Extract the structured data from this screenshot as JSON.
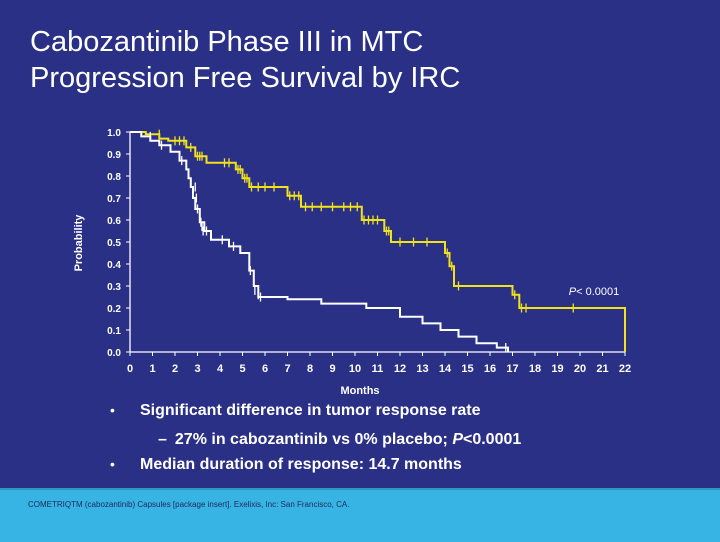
{
  "slide": {
    "title_line1": "Cabozantinib Phase III in MTC",
    "title_line2": "Progression Free Survival by IRC",
    "bullets": [
      "Significant difference in tumor response rate",
      "Median duration of response: 14.7 months"
    ],
    "sub_bullet_prefix": "27% in cabozantinib vs 0% placebo; ",
    "sub_bullet_p": "P",
    "sub_bullet_suffix": "<0.0001",
    "footer": "COMETRIQTM (cabozantinib) Capsules [package insert]. Exelixis, Inc: San Francisco, CA."
  },
  "chart_data": {
    "type": "line",
    "title": "",
    "xlabel": "Months",
    "ylabel": "Probability",
    "xlim": [
      0,
      22
    ],
    "ylim": [
      0,
      1.0
    ],
    "xticks": [
      "0",
      "1",
      "2",
      "3",
      "4",
      "5",
      "6",
      "7",
      "8",
      "9",
      "10",
      "11",
      "12",
      "13",
      "14",
      "15",
      "16",
      "17",
      "18",
      "19",
      "20",
      "21",
      "22"
    ],
    "yticks": [
      "0.0",
      "0.1",
      "0.2",
      "0.3",
      "0.4",
      "0.5",
      "0.6",
      "0.7",
      "0.8",
      "0.9",
      "1.0"
    ],
    "grid": false,
    "annotation": {
      "text_italic": "P",
      "text_rest": "< 0.0001",
      "x": 19.5,
      "y": 0.26
    },
    "colors": {
      "cabozantinib": "#f2e21c",
      "placebo": "#ffffff",
      "axis": "#ffffff"
    },
    "series": [
      {
        "step": [
          [
            0,
            1.0
          ],
          [
            0.7,
            1.0
          ],
          [
            0.7,
            0.99
          ],
          [
            1.3,
            0.99
          ],
          [
            1.3,
            0.97
          ],
          [
            1.7,
            0.97
          ],
          [
            1.7,
            0.96
          ],
          [
            2.5,
            0.96
          ],
          [
            2.5,
            0.93
          ],
          [
            2.9,
            0.93
          ],
          [
            2.9,
            0.89
          ],
          [
            3.4,
            0.89
          ],
          [
            3.4,
            0.86
          ],
          [
            4.7,
            0.86
          ],
          [
            4.7,
            0.83
          ],
          [
            5.0,
            0.83
          ],
          [
            5.0,
            0.79
          ],
          [
            5.3,
            0.79
          ],
          [
            5.3,
            0.75
          ],
          [
            7.0,
            0.75
          ],
          [
            7.0,
            0.71
          ],
          [
            7.6,
            0.71
          ],
          [
            7.6,
            0.66
          ],
          [
            10.3,
            0.66
          ],
          [
            10.3,
            0.6
          ],
          [
            11.3,
            0.6
          ],
          [
            11.3,
            0.55
          ],
          [
            11.6,
            0.55
          ],
          [
            11.6,
            0.5
          ],
          [
            14.0,
            0.5
          ],
          [
            14.0,
            0.45
          ],
          [
            14.2,
            0.45
          ],
          [
            14.2,
            0.39
          ],
          [
            14.4,
            0.39
          ],
          [
            14.4,
            0.3
          ],
          [
            17.0,
            0.3
          ],
          [
            17.0,
            0.26
          ],
          [
            17.3,
            0.26
          ],
          [
            17.3,
            0.2
          ],
          [
            22.0,
            0.2
          ],
          [
            22.0,
            0.0
          ]
        ],
        "censors": [
          [
            1.3,
            0.99
          ],
          [
            2.0,
            0.96
          ],
          [
            2.2,
            0.96
          ],
          [
            2.4,
            0.96
          ],
          [
            2.7,
            0.93
          ],
          [
            3.0,
            0.89
          ],
          [
            3.1,
            0.89
          ],
          [
            3.2,
            0.89
          ],
          [
            4.2,
            0.86
          ],
          [
            4.4,
            0.86
          ],
          [
            4.8,
            0.83
          ],
          [
            4.9,
            0.83
          ],
          [
            5.1,
            0.79
          ],
          [
            5.2,
            0.79
          ],
          [
            5.4,
            0.75
          ],
          [
            5.7,
            0.75
          ],
          [
            6.0,
            0.75
          ],
          [
            6.4,
            0.75
          ],
          [
            7.1,
            0.71
          ],
          [
            7.3,
            0.71
          ],
          [
            7.5,
            0.71
          ],
          [
            7.8,
            0.66
          ],
          [
            8.1,
            0.66
          ],
          [
            8.5,
            0.66
          ],
          [
            9.0,
            0.66
          ],
          [
            9.5,
            0.66
          ],
          [
            9.8,
            0.66
          ],
          [
            10.1,
            0.66
          ],
          [
            10.4,
            0.6
          ],
          [
            10.6,
            0.6
          ],
          [
            10.8,
            0.6
          ],
          [
            11.0,
            0.6
          ],
          [
            11.4,
            0.55
          ],
          [
            11.5,
            0.55
          ],
          [
            12.0,
            0.5
          ],
          [
            12.6,
            0.5
          ],
          [
            13.2,
            0.5
          ],
          [
            14.1,
            0.45
          ],
          [
            14.3,
            0.39
          ],
          [
            14.6,
            0.3
          ],
          [
            17.1,
            0.26
          ],
          [
            17.4,
            0.2
          ],
          [
            17.6,
            0.2
          ],
          [
            19.7,
            0.2
          ]
        ]
      },
      {
        "step": [
          [
            0,
            1.0
          ],
          [
            0.5,
            1.0
          ],
          [
            0.5,
            0.98
          ],
          [
            0.9,
            0.98
          ],
          [
            0.9,
            0.96
          ],
          [
            1.3,
            0.96
          ],
          [
            1.3,
            0.94
          ],
          [
            1.8,
            0.94
          ],
          [
            1.8,
            0.91
          ],
          [
            2.2,
            0.91
          ],
          [
            2.2,
            0.87
          ],
          [
            2.5,
            0.87
          ],
          [
            2.5,
            0.83
          ],
          [
            2.6,
            0.83
          ],
          [
            2.6,
            0.79
          ],
          [
            2.7,
            0.79
          ],
          [
            2.7,
            0.75
          ],
          [
            2.8,
            0.75
          ],
          [
            2.8,
            0.7
          ],
          [
            2.9,
            0.7
          ],
          [
            2.9,
            0.65
          ],
          [
            3.1,
            0.65
          ],
          [
            3.1,
            0.59
          ],
          [
            3.3,
            0.59
          ],
          [
            3.3,
            0.55
          ],
          [
            3.6,
            0.55
          ],
          [
            3.6,
            0.51
          ],
          [
            4.4,
            0.51
          ],
          [
            4.4,
            0.48
          ],
          [
            4.9,
            0.48
          ],
          [
            4.9,
            0.45
          ],
          [
            5.3,
            0.45
          ],
          [
            5.3,
            0.37
          ],
          [
            5.5,
            0.37
          ],
          [
            5.5,
            0.3
          ],
          [
            5.7,
            0.3
          ],
          [
            5.7,
            0.25
          ],
          [
            7.0,
            0.25
          ],
          [
            7.0,
            0.24
          ],
          [
            8.5,
            0.24
          ],
          [
            8.5,
            0.22
          ],
          [
            10.5,
            0.22
          ],
          [
            10.5,
            0.2
          ],
          [
            12.0,
            0.2
          ],
          [
            12.0,
            0.16
          ],
          [
            13.0,
            0.16
          ],
          [
            13.0,
            0.13
          ],
          [
            13.8,
            0.13
          ],
          [
            13.8,
            0.1
          ],
          [
            14.6,
            0.1
          ],
          [
            14.6,
            0.07
          ],
          [
            15.4,
            0.07
          ],
          [
            15.4,
            0.04
          ],
          [
            16.3,
            0.04
          ],
          [
            16.3,
            0.02
          ],
          [
            16.8,
            0.02
          ],
          [
            16.8,
            0.0
          ]
        ],
        "censors": [
          [
            0.9,
            0.98
          ],
          [
            1.4,
            0.94
          ],
          [
            2.3,
            0.87
          ],
          [
            2.9,
            0.75
          ],
          [
            2.95,
            0.7
          ],
          [
            3.0,
            0.65
          ],
          [
            3.15,
            0.59
          ],
          [
            3.2,
            0.57
          ],
          [
            3.25,
            0.55
          ],
          [
            3.4,
            0.55
          ],
          [
            4.1,
            0.51
          ],
          [
            4.6,
            0.48
          ],
          [
            5.35,
            0.37
          ],
          [
            5.55,
            0.28
          ],
          [
            5.7,
            0.26
          ],
          [
            5.8,
            0.25
          ],
          [
            16.7,
            0.02
          ]
        ]
      }
    ]
  }
}
